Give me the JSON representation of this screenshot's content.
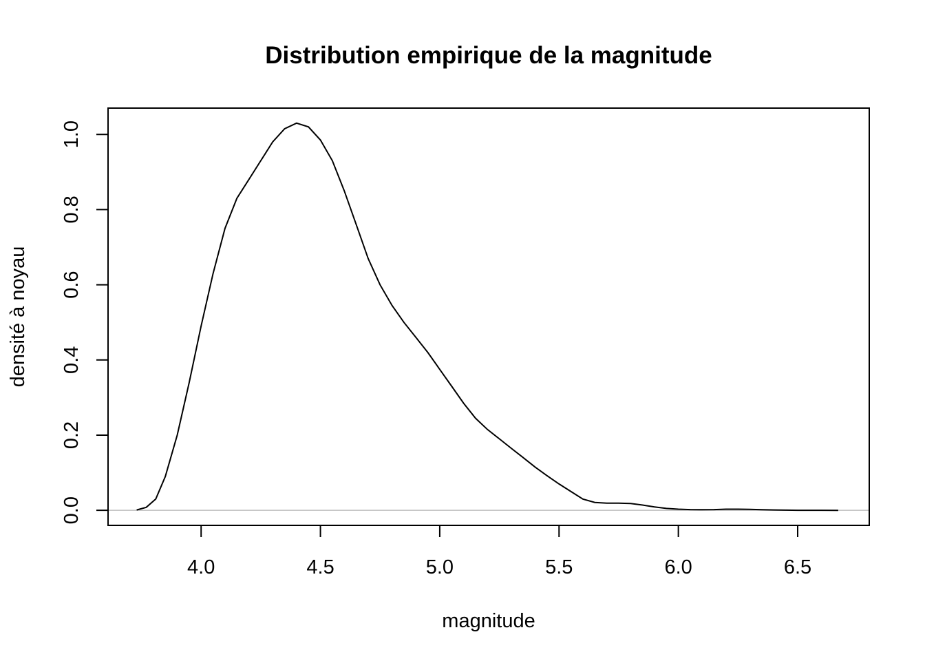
{
  "chart_data": {
    "type": "line",
    "title": "Distribution empirique de la magnitude",
    "xlabel": "magnitude",
    "ylabel": "densité à noyau",
    "xlim": [
      3.61,
      6.8
    ],
    "ylim": [
      -0.04,
      1.07
    ],
    "xticks": [
      4.0,
      4.5,
      5.0,
      5.5,
      6.0,
      6.5
    ],
    "xtick_labels": [
      "4.0",
      "4.5",
      "5.0",
      "5.5",
      "6.0",
      "6.5"
    ],
    "yticks": [
      0.0,
      0.2,
      0.4,
      0.6,
      0.8,
      1.0
    ],
    "ytick_labels": [
      "0.0",
      "0.2",
      "0.4",
      "0.6",
      "0.8",
      "1.0"
    ],
    "baseline": 0,
    "grid": false,
    "legend": "none",
    "colors": {
      "line": "#000000",
      "baseline": "#bebebe",
      "frame": "#000000"
    },
    "series": [
      {
        "x": [
          3.73,
          3.77,
          3.81,
          3.85,
          3.9,
          3.95,
          4.0,
          4.05,
          4.1,
          4.15,
          4.2,
          4.25,
          4.3,
          4.35,
          4.4,
          4.45,
          4.5,
          4.55,
          4.6,
          4.65,
          4.7,
          4.75,
          4.8,
          4.85,
          4.9,
          4.95,
          5.0,
          5.05,
          5.1,
          5.15,
          5.2,
          5.25,
          5.3,
          5.35,
          5.4,
          5.45,
          5.5,
          5.55,
          5.6,
          5.65,
          5.7,
          5.75,
          5.8,
          5.85,
          5.9,
          5.95,
          6.0,
          6.05,
          6.1,
          6.15,
          6.2,
          6.25,
          6.3,
          6.35,
          6.4,
          6.45,
          6.5,
          6.55,
          6.6,
          6.67
        ],
        "y": [
          0.001,
          0.008,
          0.03,
          0.09,
          0.2,
          0.34,
          0.49,
          0.63,
          0.75,
          0.83,
          0.88,
          0.93,
          0.98,
          1.015,
          1.03,
          1.02,
          0.985,
          0.93,
          0.85,
          0.76,
          0.67,
          0.6,
          0.545,
          0.5,
          0.46,
          0.42,
          0.375,
          0.33,
          0.285,
          0.245,
          0.215,
          0.19,
          0.165,
          0.14,
          0.115,
          0.092,
          0.07,
          0.05,
          0.03,
          0.021,
          0.019,
          0.019,
          0.018,
          0.014,
          0.009,
          0.005,
          0.003,
          0.002,
          0.0015,
          0.002,
          0.003,
          0.003,
          0.0025,
          0.0015,
          0.001,
          0.0005,
          0.0002,
          0.0001,
          5e-05,
          1e-05
        ]
      }
    ]
  }
}
